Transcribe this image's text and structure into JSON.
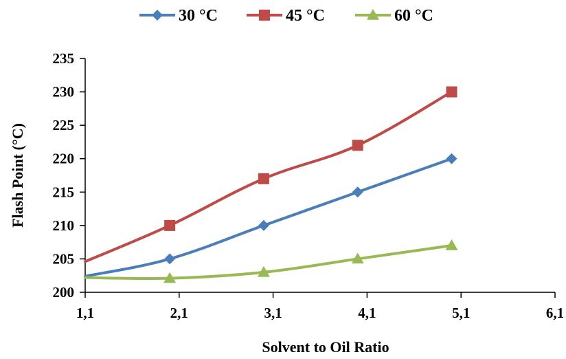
{
  "chart_data": {
    "type": "line",
    "xlabel": "Solvent to Oil Ratio",
    "ylabel": "Flash Point (°C)",
    "xlim": [
      1.1,
      6.1
    ],
    "ylim": [
      200,
      235
    ],
    "x_ticks": [
      "1,1",
      "2,1",
      "3,1",
      "4,1",
      "5,1",
      "6,1"
    ],
    "y_ticks": [
      "200",
      "205",
      "210",
      "215",
      "220",
      "225",
      "230",
      "235"
    ],
    "grid": false,
    "legend_position": "top",
    "series": [
      {
        "name": "30 °C",
        "color": "#4a7ebb",
        "marker": "diamond",
        "x": [
          1.1,
          2.0,
          3.0,
          4.0,
          5.0
        ],
        "y": [
          202.4,
          205,
          210,
          215,
          220
        ]
      },
      {
        "name": "45 °C",
        "color": "#be4b48",
        "marker": "square",
        "x": [
          1.1,
          2.0,
          3.0,
          4.0,
          5.0
        ],
        "y": [
          204.6,
          210,
          217,
          222,
          230
        ]
      },
      {
        "name": "60 °C",
        "color": "#98b954",
        "marker": "triangle",
        "x": [
          1.1,
          2.0,
          3.0,
          4.0,
          5.0
        ],
        "y": [
          202.2,
          202.1,
          203,
          205,
          207
        ]
      }
    ]
  }
}
